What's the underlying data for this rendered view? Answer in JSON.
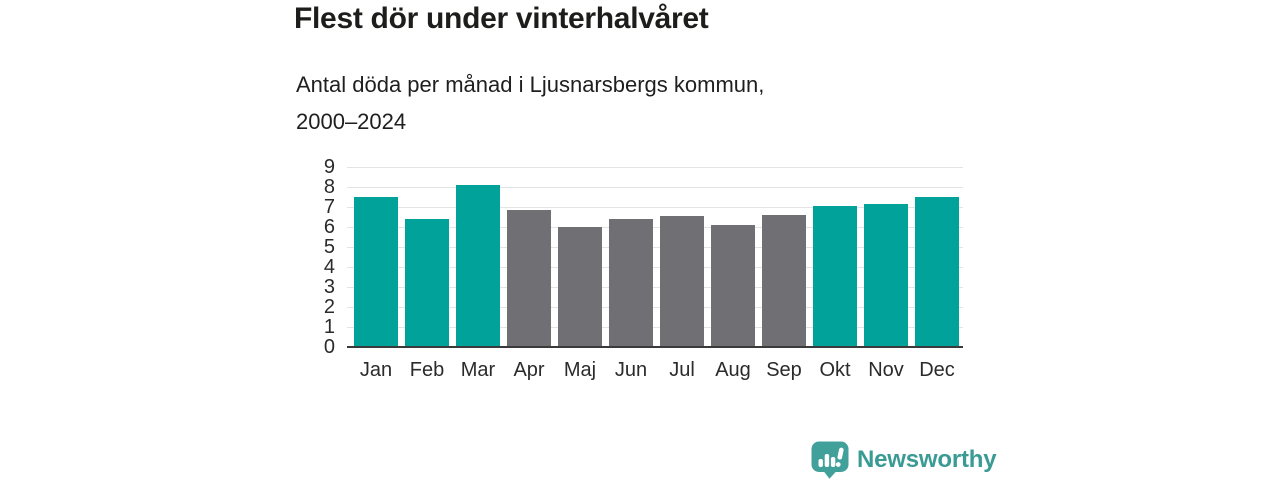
{
  "header": {
    "title": "Flest dör under vinterhalvåret",
    "subtitle": "Antal döda per månad i Ljusnarsbergs kommun,\n2000–2024"
  },
  "chart_data": {
    "type": "bar",
    "title": "Flest dör under vinterhalvåret",
    "subtitle": "Antal döda per månad i Ljusnarsbergs kommun, 2000–2024",
    "categories": [
      "Jan",
      "Feb",
      "Mar",
      "Apr",
      "Maj",
      "Jun",
      "Jul",
      "Aug",
      "Sep",
      "Okt",
      "Nov",
      "Dec"
    ],
    "values": [
      7.5,
      6.4,
      8.1,
      6.85,
      6.0,
      6.4,
      6.55,
      6.1,
      6.6,
      7.05,
      7.15,
      7.5
    ],
    "highlighted": [
      true,
      true,
      true,
      false,
      false,
      false,
      false,
      false,
      false,
      true,
      true,
      true
    ],
    "xlabel": "",
    "ylabel": "",
    "ylim": [
      0,
      9
    ],
    "ytick_step": 1,
    "grid": "horizontal",
    "legend": "none",
    "colors": {
      "highlight": "#00a29a",
      "base": "#6f6f74",
      "grid": "#e4e4e4",
      "axis": "#3a3a3a",
      "tick_text": "#2b2b2b"
    }
  },
  "branding": {
    "logo_text": "Newsworthy",
    "logo_icon": "bar-chart-speech-bubble-icon",
    "logo_color": "#3a9b94",
    "logo_bubble_color": "#41a09a"
  }
}
